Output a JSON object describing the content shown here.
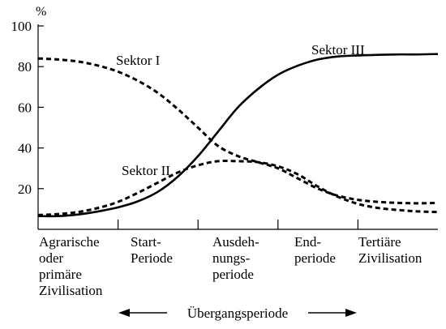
{
  "chart_data": {
    "type": "line",
    "yunit": "%",
    "ylim": [
      0,
      100
    ],
    "yticks": [
      20,
      40,
      60,
      80,
      100
    ],
    "xlim": [
      0,
      5
    ],
    "x": [
      0,
      0.25,
      0.5,
      0.75,
      1.0,
      1.25,
      1.5,
      1.75,
      2.0,
      2.25,
      2.5,
      2.75,
      3.0,
      3.25,
      3.5,
      3.75,
      4.0,
      4.25,
      4.5,
      4.75,
      5.0
    ],
    "series": [
      {
        "name": "Sektor I",
        "style": "dashed",
        "values": [
          84,
          83.5,
          82.5,
          80.5,
          77.5,
          73,
          67,
          59,
          50,
          41,
          36,
          33,
          30,
          25,
          20,
          16.5,
          14.5,
          13.5,
          13,
          12.8,
          13
        ]
      },
      {
        "name": "Sektor II",
        "style": "dashed",
        "values": [
          7,
          7.5,
          8.5,
          10.5,
          13.5,
          18,
          23,
          28,
          31.5,
          33.5,
          33.5,
          33,
          31,
          27,
          21,
          16,
          12.5,
          10.5,
          9.5,
          8.8,
          8.5
        ]
      },
      {
        "name": "Sektor III",
        "style": "solid",
        "values": [
          6.5,
          6.5,
          7.3,
          8.8,
          10.8,
          13.8,
          18.5,
          26,
          36,
          48,
          60,
          69,
          76,
          80.5,
          83.5,
          85,
          85.5,
          85.8,
          86,
          86,
          86.2
        ]
      }
    ],
    "phases": [
      "Agrarische\noder\nprimäre\nZivilisation",
      "Start-\nPeriode",
      "Ausdeh-\nnungs-\nperiode",
      "End-\nperiode",
      "Tertiäre\nZivilisation"
    ],
    "bottom_label": "Übergangsperiode"
  }
}
